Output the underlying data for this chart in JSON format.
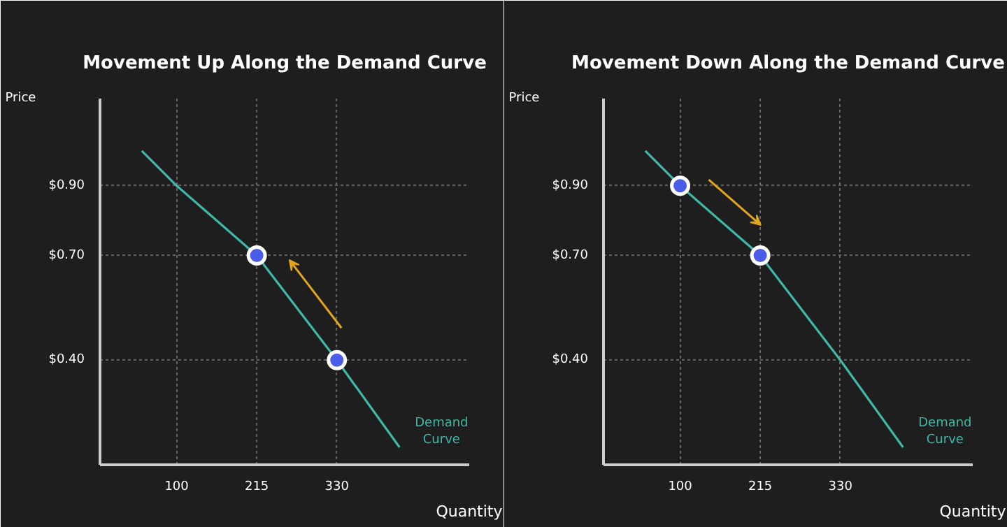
{
  "chart_data": [
    {
      "type": "line",
      "title": "Movement Up Along the Demand Curve",
      "xlabel": "Quantity",
      "ylabel": "Price",
      "xlim": [
        -10,
        520
      ],
      "ylim": [
        0.1,
        1.15
      ],
      "xticks": [
        100,
        215,
        330
      ],
      "yticks": [
        {
          "value": 0.4,
          "label": "$0.40"
        },
        {
          "value": 0.7,
          "label": "$0.70"
        },
        {
          "value": 0.9,
          "label": "$0.90"
        }
      ],
      "grid": true,
      "legend": false,
      "series": [
        {
          "name": "Demand Curve",
          "color": "#3fb8a6",
          "x": [
            50,
            100,
            215,
            330,
            420
          ],
          "values": [
            1.0,
            0.9,
            0.7,
            0.4,
            0.15
          ]
        },
        {
          "type": "scatter",
          "color": "#4a5ce8",
          "marker": "circle",
          "x": [
            330,
            215
          ],
          "values": [
            0.4,
            0.7
          ]
        }
      ]
    },
    {
      "type": "line",
      "title": "Movement Down Along the Demand Curve",
      "xlabel": "Quantity",
      "ylabel": "Price",
      "xlim": [
        -10,
        520
      ],
      "ylim": [
        0.1,
        1.15
      ],
      "xticks": [
        100,
        215,
        330
      ],
      "yticks": [
        {
          "value": 0.4,
          "label": "$0.40"
        },
        {
          "value": 0.7,
          "label": "$0.70"
        },
        {
          "value": 0.9,
          "label": "$0.90"
        }
      ],
      "grid": true,
      "legend": false,
      "series": [
        {
          "name": "Demand Curve",
          "color": "#3fb8a6",
          "x": [
            50,
            100,
            215,
            330,
            420
          ],
          "values": [
            1.0,
            0.9,
            0.7,
            0.4,
            0.15
          ]
        },
        {
          "type": "scatter",
          "color": "#4a5ce8",
          "marker": "circle",
          "x": [
            100,
            215
          ],
          "values": [
            0.9,
            0.7
          ]
        }
      ]
    }
  ]
}
